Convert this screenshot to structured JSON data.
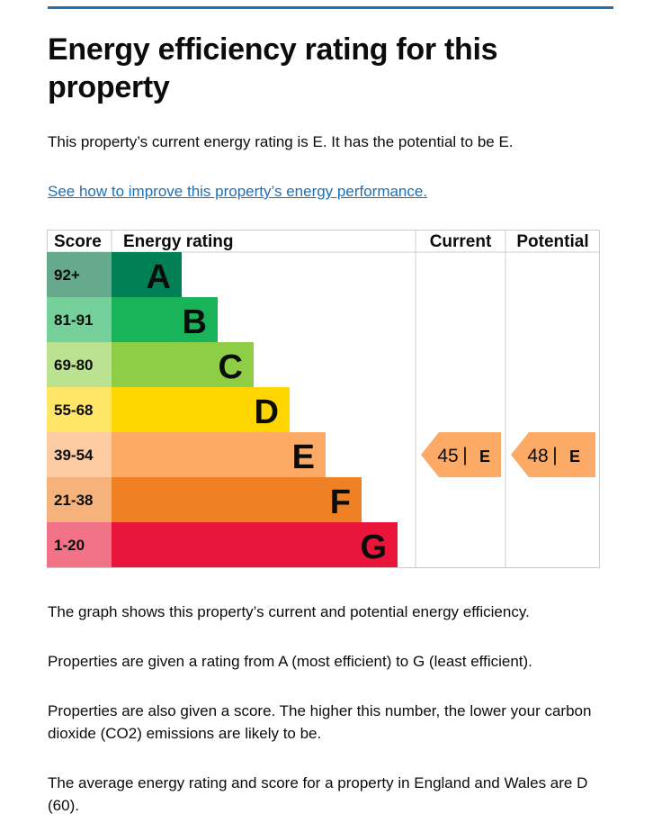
{
  "page": {
    "title": "Energy efficiency rating for this property",
    "intro": "This property’s current energy rating is E. It has the potential to be E.",
    "link_text": "See how to improve this property’s energy performance.",
    "paragraphs": [
      "The graph shows this property’s current and potential energy efficiency.",
      "Properties are given a rating from A (most efficient) to G (least efficient).",
      "Properties are also given a score. The higher this number, the lower your carbon dioxide (CO2) emissions are likely to be.",
      "The average energy rating and score for a property in England and Wales are D (60)."
    ],
    "accent_color": "#1d70b8"
  },
  "chart_data": {
    "type": "bar",
    "headers": {
      "score": "Score",
      "rating": "Energy rating",
      "current": "Current",
      "potential": "Potential"
    },
    "bands": [
      {
        "score": "92+",
        "letter": "A",
        "color": "#008054",
        "score_bg": "#66a98d"
      },
      {
        "score": "81-91",
        "letter": "B",
        "color": "#19b459",
        "score_bg": "#75d09a"
      },
      {
        "score": "69-80",
        "letter": "C",
        "color": "#8dce46",
        "score_bg": "#bae290"
      },
      {
        "score": "55-68",
        "letter": "D",
        "color": "#ffd500",
        "score_bg": "#ffe666"
      },
      {
        "score": "39-54",
        "letter": "E",
        "color": "#fcaa65",
        "score_bg": "#fdcca3"
      },
      {
        "score": "21-38",
        "letter": "F",
        "color": "#ef8023",
        "score_bg": "#f5b37b"
      },
      {
        "score": "1-20",
        "letter": "G",
        "color": "#e9153b",
        "score_bg": "#f27388"
      }
    ],
    "current": {
      "score": 45,
      "letter": "E",
      "separator": "|"
    },
    "potential": {
      "score": 48,
      "letter": "E",
      "separator": "|"
    },
    "arrow_color": "#fcaa65"
  }
}
